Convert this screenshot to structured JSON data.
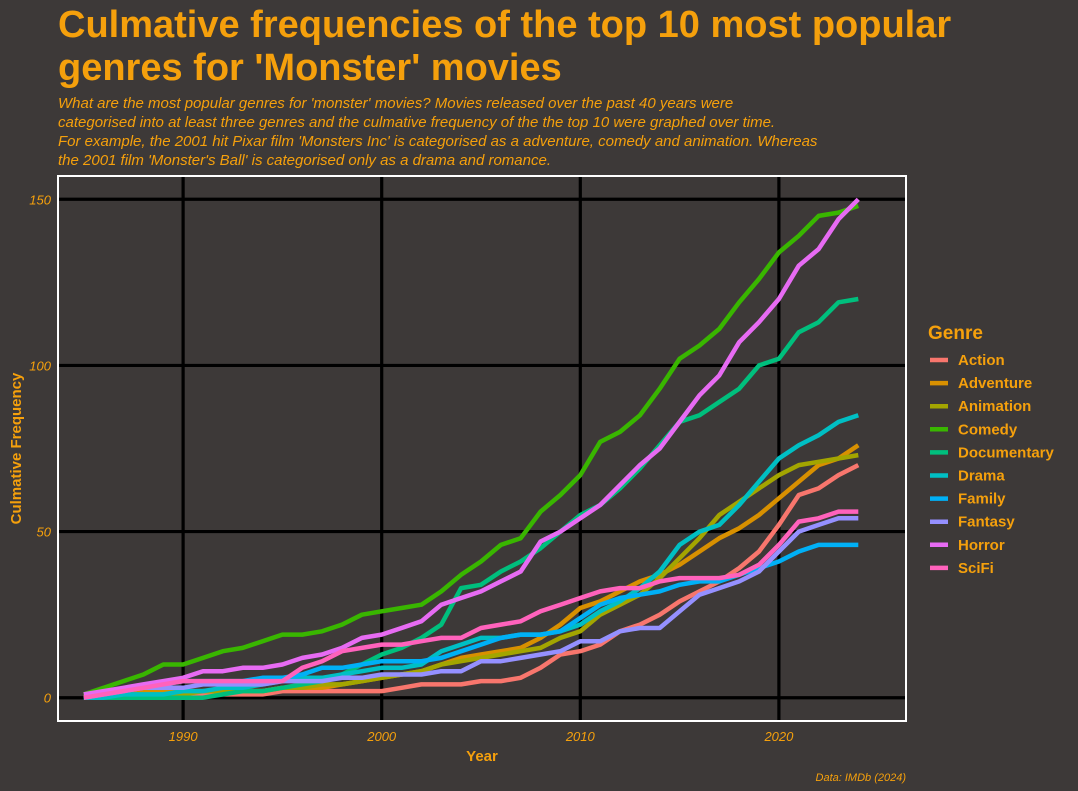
{
  "chart_data": {
    "type": "line",
    "title_lines": [
      "Culmative frequencies of the top 10 most popular",
      "genres for 'Monster' movies"
    ],
    "subtitle_lines": [
      "What are the most popular genres for 'monster' movies? Movies released over the past 40 years were",
      "categorised into at least three genres and the culmative frequency of the the top 10 were graphed over time.",
      "For example, the 2001 hit Pixar film 'Monsters Inc' is categorised as a adventure, comedy and animation. Whereas",
      "the 2001 film 'Monster's Ball' is categorised only as a drama and romance."
    ],
    "xlabel": "Year",
    "ylabel": "Culmative Frequency",
    "caption": "Data: IMDb (2024)",
    "legend_title": "Genre",
    "legend_position": "right",
    "grid": true,
    "xlim": [
      1983.7,
      2026.4
    ],
    "ylim": [
      -7,
      157
    ],
    "xticks": [
      1990,
      2000,
      2010,
      2020
    ],
    "yticks": [
      0,
      50,
      100,
      150
    ],
    "colors": {
      "background": "#3d3938",
      "text": "#f5a00c",
      "grid": "#000000",
      "panel_border": "#ffffff"
    },
    "x": [
      1985,
      1986,
      1987,
      1988,
      1989,
      1990,
      1991,
      1992,
      1993,
      1994,
      1995,
      1996,
      1997,
      1998,
      1999,
      2000,
      2001,
      2002,
      2003,
      2004,
      2005,
      2006,
      2007,
      2008,
      2009,
      2010,
      2011,
      2012,
      2013,
      2014,
      2015,
      2016,
      2017,
      2018,
      2019,
      2020,
      2021,
      2022,
      2023,
      2024
    ],
    "series": [
      {
        "name": "Action",
        "color": "#f8766d",
        "values": [
          1,
          1,
          1,
          1,
          1,
          1,
          1,
          1,
          1,
          1,
          2,
          2,
          2,
          2,
          2,
          2,
          3,
          4,
          4,
          4,
          5,
          5,
          6,
          9,
          13,
          14,
          16,
          20,
          22,
          25,
          29,
          32,
          35,
          39,
          44,
          52,
          61,
          63,
          67,
          70
        ]
      },
      {
        "name": "Adventure",
        "color": "#d89000",
        "values": [
          1,
          1,
          1,
          2,
          2,
          2,
          2,
          2,
          2,
          2,
          3,
          3,
          3,
          4,
          5,
          6,
          7,
          8,
          10,
          12,
          13,
          14,
          15,
          18,
          22,
          27,
          29,
          32,
          35,
          37,
          40,
          44,
          48,
          51,
          55,
          60,
          65,
          70,
          72,
          76
        ]
      },
      {
        "name": "Animation",
        "color": "#a3a500",
        "values": [
          1,
          1,
          1,
          1,
          1,
          1,
          2,
          2,
          2,
          2,
          3,
          3,
          4,
          4,
          5,
          6,
          7,
          8,
          10,
          11,
          12,
          13,
          14,
          15,
          18,
          20,
          25,
          28,
          31,
          36,
          42,
          48,
          55,
          59,
          63,
          67,
          70,
          71,
          72,
          73
        ]
      },
      {
        "name": "Comedy",
        "color": "#39b600",
        "values": [
          1,
          3,
          5,
          7,
          10,
          10,
          12,
          14,
          15,
          17,
          19,
          19,
          20,
          22,
          25,
          26,
          27,
          28,
          32,
          37,
          41,
          46,
          48,
          56,
          61,
          67,
          77,
          80,
          85,
          93,
          102,
          106,
          111,
          119,
          126,
          134,
          139,
          145,
          146,
          148
        ]
      },
      {
        "name": "Documentary",
        "color": "#00bf7d",
        "values": [
          0,
          0,
          0,
          0,
          0,
          0,
          0,
          1,
          2,
          2,
          3,
          4,
          5,
          7,
          10,
          13,
          15,
          18,
          22,
          33,
          34,
          38,
          41,
          45,
          50,
          55,
          58,
          63,
          69,
          76,
          83,
          85,
          89,
          93,
          100,
          102,
          110,
          113,
          119,
          120
        ]
      },
      {
        "name": "Drama",
        "color": "#00bfc4",
        "values": [
          0,
          0,
          1,
          1,
          1,
          2,
          2,
          3,
          3,
          4,
          5,
          6,
          6,
          7,
          8,
          9,
          9,
          10,
          14,
          16,
          18,
          18,
          19,
          19,
          20,
          22,
          26,
          29,
          33,
          38,
          46,
          50,
          52,
          58,
          65,
          72,
          76,
          79,
          83,
          85
        ]
      },
      {
        "name": "Family",
        "color": "#00b0f6",
        "values": [
          0,
          1,
          2,
          3,
          4,
          5,
          5,
          5,
          5,
          6,
          6,
          7,
          9,
          9,
          10,
          11,
          11,
          11,
          12,
          14,
          16,
          18,
          19,
          19,
          20,
          24,
          28,
          30,
          31,
          32,
          34,
          35,
          35,
          37,
          39,
          41,
          44,
          46,
          46,
          46
        ]
      },
      {
        "name": "Fantasy",
        "color": "#9590ff",
        "values": [
          0,
          1,
          2,
          3,
          3,
          3,
          4,
          4,
          4,
          4,
          5,
          5,
          5,
          6,
          6,
          7,
          7,
          7,
          8,
          8,
          11,
          11,
          12,
          13,
          14,
          17,
          17,
          20,
          21,
          21,
          26,
          31,
          33,
          35,
          38,
          44,
          50,
          52,
          54,
          54
        ]
      },
      {
        "name": "Horror",
        "color": "#e76bf3",
        "values": [
          1,
          2,
          3,
          4,
          5,
          6,
          8,
          8,
          9,
          9,
          10,
          12,
          13,
          15,
          18,
          19,
          21,
          23,
          28,
          30,
          32,
          35,
          38,
          47,
          50,
          54,
          58,
          64,
          70,
          75,
          83,
          91,
          97,
          107,
          113,
          120,
          130,
          135,
          144,
          150
        ]
      },
      {
        "name": "SciFi",
        "color": "#ff62bc",
        "values": [
          0,
          1,
          2,
          3,
          4,
          5,
          5,
          5,
          5,
          5,
          5,
          9,
          11,
          14,
          15,
          16,
          16,
          17,
          18,
          18,
          21,
          22,
          23,
          26,
          28,
          30,
          32,
          33,
          33,
          35,
          36,
          36,
          36,
          37,
          40,
          46,
          53,
          54,
          56,
          56
        ]
      }
    ]
  }
}
